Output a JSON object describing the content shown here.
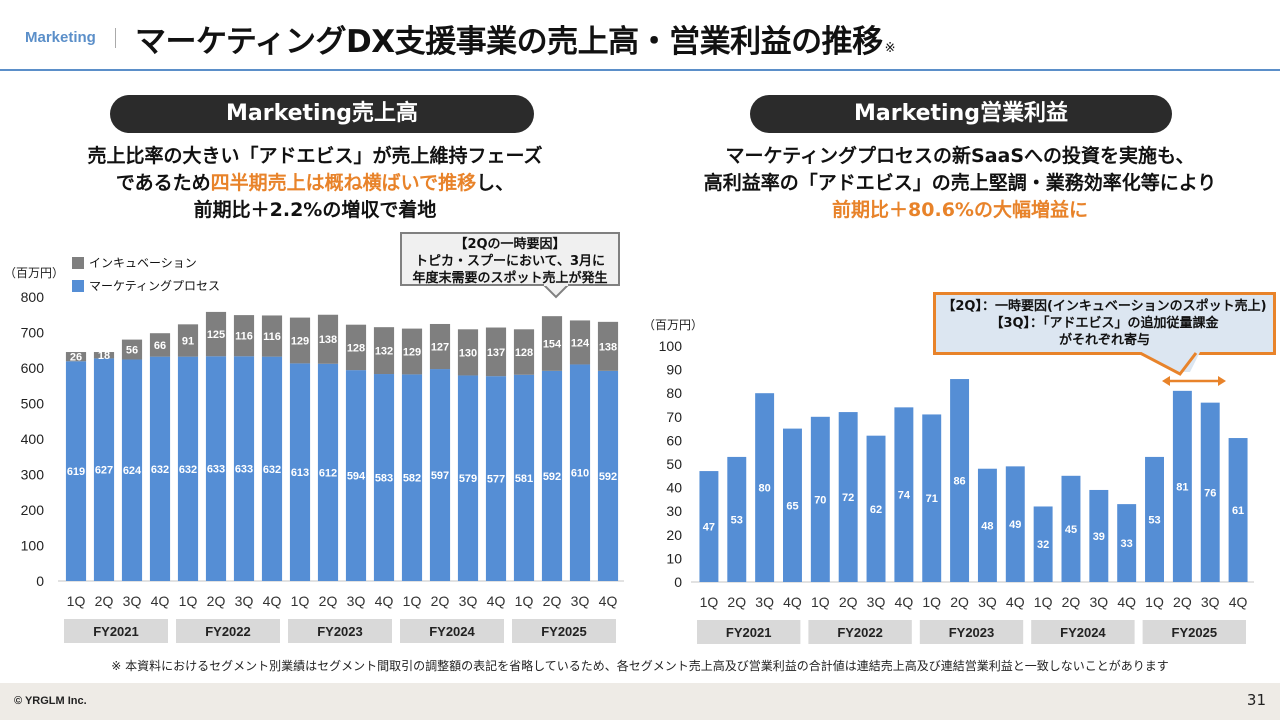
{
  "header": {
    "section": "Marketing",
    "title": "マーケティングDX支援事業の売上高・営業利益の推移",
    "title_mark": "※"
  },
  "left_panel": {
    "pill": "Marketing売上高",
    "desc_line1": "売上比率の大きい「アドエビス」が売上維持フェーズ",
    "desc_line2_pre": "であるため",
    "desc_line2_hl": "四半期売上は概ね横ばいで推移",
    "desc_line2_post": "し、",
    "desc_line3": "前期比＋2.2%の増収で着地",
    "unit": "（百万円）",
    "callout": [
      "【2Qの一時要因】",
      "トピカ・スプーにおいて、3月に",
      "年度末需要のスポット売上が発生"
    ]
  },
  "right_panel": {
    "pill": "Marketing営業利益",
    "desc_line1": "マーケティングプロセスの新SaaSへの投資を実施も、",
    "desc_line2": "高利益率の「アドエビス」の売上堅調・業務効率化等により",
    "desc_line3_hl": "前期比＋80.6%の大幅増益に",
    "unit": "（百万円）",
    "callout": [
      "【2Q】：一時要因(インキュベーションのスポット売上)",
      "【3Q】：「アドエビス」の追加従量課金",
      "がそれぞれ寄与"
    ]
  },
  "colors": {
    "accent": "#5B8FC9",
    "highlight": "#E8832A",
    "bar_blue": "#558ED5",
    "bar_gray": "#7F7F7F",
    "pill_bg": "#2B2B2B",
    "fy_box": "#D9D9D9"
  },
  "chart_data": [
    {
      "type": "bar",
      "stacked": true,
      "title": "Marketing売上高",
      "ylabel": "（百万円）",
      "ylim": [
        0,
        800
      ],
      "yticks": [
        0,
        100,
        200,
        300,
        400,
        500,
        600,
        700,
        800
      ],
      "grid": false,
      "legend_position": "top-left",
      "categories": [
        "1Q",
        "2Q",
        "3Q",
        "4Q",
        "1Q",
        "2Q",
        "3Q",
        "4Q",
        "1Q",
        "2Q",
        "3Q",
        "4Q",
        "1Q",
        "2Q",
        "3Q",
        "4Q",
        "1Q",
        "2Q",
        "3Q",
        "4Q"
      ],
      "groups": [
        "FY2021",
        "FY2022",
        "FY2023",
        "FY2024",
        "FY2025"
      ],
      "series": [
        {
          "name": "マーケティングプロセス",
          "color": "#558ED5",
          "values": [
            619,
            627,
            624,
            632,
            632,
            633,
            633,
            632,
            613,
            612,
            594,
            583,
            582,
            597,
            579,
            577,
            581,
            592,
            610,
            592
          ]
        },
        {
          "name": "インキュベーション",
          "color": "#7F7F7F",
          "values": [
            26,
            18,
            56,
            66,
            91,
            125,
            116,
            116,
            129,
            138,
            128,
            132,
            129,
            127,
            130,
            137,
            128,
            154,
            124,
            138
          ]
        }
      ],
      "legend_order": [
        "インキュベーション",
        "マーケティングプロセス"
      ]
    },
    {
      "type": "bar",
      "title": "Marketing営業利益",
      "ylabel": "（百万円）",
      "ylim": [
        0,
        100
      ],
      "yticks": [
        0,
        10,
        20,
        30,
        40,
        50,
        60,
        70,
        80,
        90,
        100
      ],
      "grid": false,
      "categories": [
        "1Q",
        "2Q",
        "3Q",
        "4Q",
        "1Q",
        "2Q",
        "3Q",
        "4Q",
        "1Q",
        "2Q",
        "3Q",
        "4Q",
        "1Q",
        "2Q",
        "3Q",
        "4Q",
        "1Q",
        "2Q",
        "3Q",
        "4Q"
      ],
      "groups": [
        "FY2021",
        "FY2022",
        "FY2023",
        "FY2024",
        "FY2025"
      ],
      "series": [
        {
          "name": "営業利益",
          "color": "#558ED5",
          "values": [
            47,
            53,
            80,
            65,
            70,
            72,
            62,
            74,
            71,
            86,
            48,
            49,
            32,
            45,
            39,
            33,
            53,
            81,
            76,
            61
          ]
        }
      ]
    }
  ],
  "footnote": "※ 本資料におけるセグメント別業績はセグメント間取引の調整額の表記を省略しているため、各セグメント売上高及び営業利益の合計値は連結売上高及び連結営業利益と一致しないことがあります",
  "footer": {
    "copyright": "© YRGLM Inc.",
    "page_number": "31"
  }
}
